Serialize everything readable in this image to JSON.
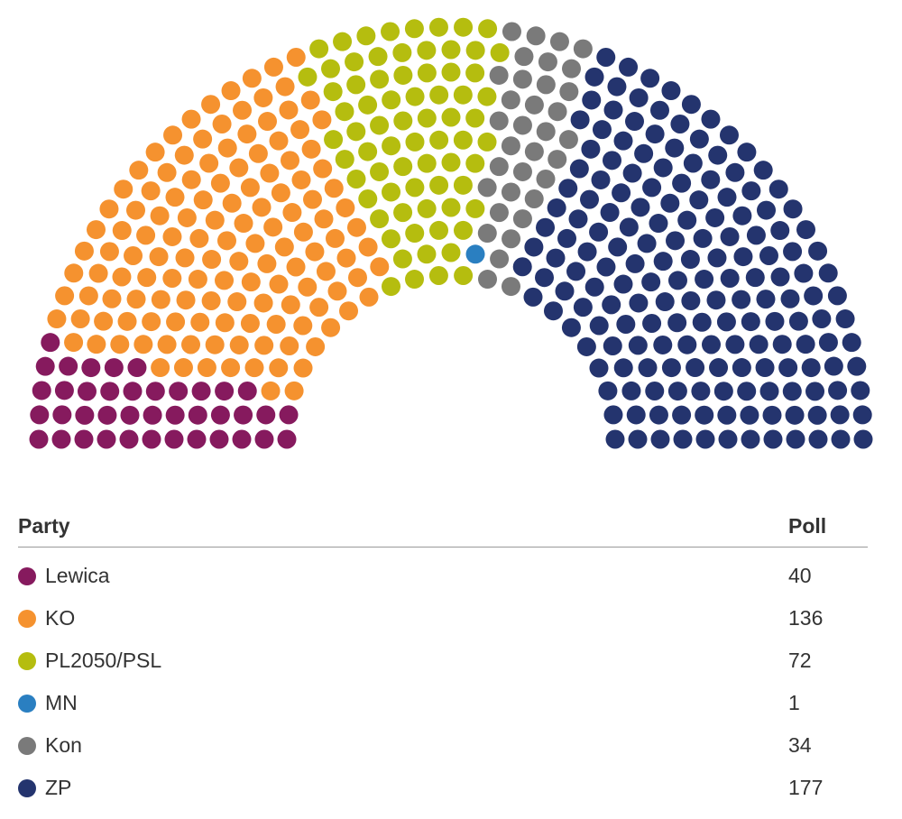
{
  "chart_data": {
    "type": "parliament",
    "total_seats": 460,
    "table_headers": {
      "party": "Party",
      "poll": "Poll"
    },
    "parties": [
      {
        "name": "Lewica",
        "seats": 40,
        "color": "#861a5e"
      },
      {
        "name": "KO",
        "seats": 136,
        "color": "#f5922f"
      },
      {
        "name": "PL2050/PSL",
        "seats": 72,
        "color": "#b5bd0f"
      },
      {
        "name": "MN",
        "seats": 1,
        "color": "#2a7fc1"
      },
      {
        "name": "Kon",
        "seats": 34,
        "color": "#7a7a7a"
      },
      {
        "name": "ZP",
        "seats": 177,
        "color": "#24346e"
      }
    ]
  }
}
